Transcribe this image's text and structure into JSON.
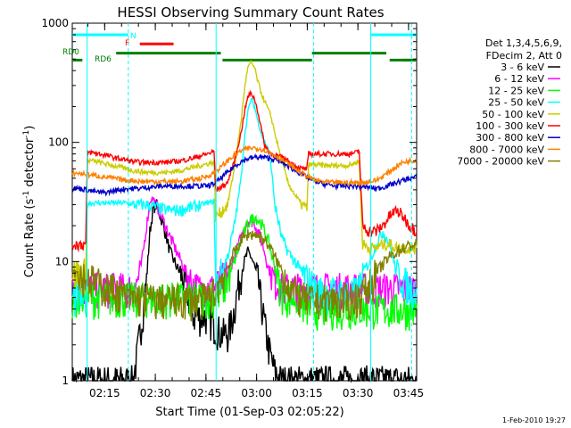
{
  "chart_data": {
    "type": "line",
    "title": "HESSI Observing Summary Count Rates",
    "xlabel": "Start Time (01-Sep-03 02:05:22)",
    "ylabel_pre": "Count Rate (s",
    "ylabel_sup1": "-1",
    "ylabel_mid": " detector",
    "ylabel_sup2": "-1",
    "ylabel_post": ")",
    "footer": "1-Feb-2010 19:27",
    "y_scale": "log",
    "ylim": [
      1,
      1000
    ],
    "y_ticks": [
      {
        "value": 1,
        "label": "1"
      },
      {
        "value": 10,
        "label": "10"
      },
      {
        "value": 100,
        "label": "100"
      },
      {
        "value": 1000,
        "label": "1000"
      }
    ],
    "xlim_minutes": [
      0,
      102
    ],
    "x_ticks": [
      {
        "value": 9.6,
        "label": "02:15"
      },
      {
        "value": 24.6,
        "label": "02:30"
      },
      {
        "value": 39.6,
        "label": "02:45"
      },
      {
        "value": 54.6,
        "label": "03:00"
      },
      {
        "value": 69.6,
        "label": "03:15"
      },
      {
        "value": 84.6,
        "label": "03:30"
      },
      {
        "value": 99.6,
        "label": "03:45"
      }
    ],
    "x_minor_step": 5,
    "x_minor_start": 4.6,
    "legend_header": [
      "Det 1,3,4,5,6,9,",
      "FDecim 2, Att 0"
    ],
    "series": [
      {
        "name": "3 - 6 keV",
        "color": "#000000",
        "x": [
          0,
          14,
          18,
          19,
          20,
          21,
          22,
          23,
          24,
          25,
          27,
          29,
          31,
          33,
          35,
          36,
          38,
          40,
          42,
          44,
          46,
          47,
          48,
          49,
          50,
          51,
          52,
          53,
          54,
          55,
          56,
          57,
          58,
          59,
          60,
          62,
          64,
          66,
          68,
          70,
          72,
          74,
          76,
          78,
          80,
          82,
          84,
          86,
          88,
          90,
          92,
          94,
          96,
          98,
          100,
          102
        ],
        "y": [
          1,
          1,
          1,
          1.5,
          2.5,
          4,
          7,
          18,
          28,
          30,
          20,
          12,
          9,
          7,
          4.5,
          3.5,
          3.5,
          3.5,
          3,
          2.5,
          2.5,
          3,
          4,
          6,
          8,
          10,
          12,
          11,
          9,
          7,
          4.5,
          3,
          2,
          1.5,
          1.2,
          1,
          1,
          1,
          1,
          1,
          1,
          1,
          1,
          1,
          1,
          1,
          1,
          1,
          1,
          1,
          1,
          1,
          1,
          1,
          1,
          1
        ]
      },
      {
        "name": "6 - 12 keV",
        "color": "#ff00ff",
        "x": [
          0,
          14,
          17,
          19,
          20,
          21,
          22,
          23,
          24,
          25,
          27,
          29,
          31,
          33,
          35,
          37,
          39,
          40,
          42,
          44,
          46,
          48,
          50,
          51,
          52,
          53,
          54,
          55,
          56,
          57,
          58,
          60,
          62,
          64,
          66,
          68,
          70,
          72,
          74,
          76,
          78,
          80,
          82,
          84,
          86,
          88,
          90,
          92,
          94,
          96,
          98,
          100,
          102
        ],
        "y": [
          6,
          6,
          6,
          6.5,
          8,
          12,
          20,
          32,
          34,
          30,
          22,
          16,
          12,
          9,
          7,
          6,
          6,
          6,
          6,
          7,
          8,
          11,
          16,
          19,
          22,
          22,
          21,
          18,
          15,
          12,
          9,
          7,
          6,
          6,
          6,
          6,
          6,
          6,
          6,
          6,
          6,
          6,
          6,
          6,
          6,
          6,
          6,
          6,
          6,
          6,
          6,
          6,
          6
        ]
      },
      {
        "name": "12 - 25 keV",
        "color": "#00ff00",
        "x": [
          0,
          4,
          6,
          8,
          10,
          12,
          14,
          16,
          18,
          20,
          22,
          24,
          26,
          28,
          30,
          32,
          34,
          36,
          38,
          40,
          42,
          44,
          46,
          48,
          50,
          52,
          54,
          56,
          58,
          60,
          62,
          64,
          66,
          68,
          70,
          72,
          74,
          76,
          78,
          80,
          82,
          84,
          86,
          88,
          90,
          92,
          94,
          96,
          98,
          100,
          102
        ],
        "y": [
          5,
          5,
          5,
          5,
          5,
          5,
          5,
          5,
          5,
          5,
          5,
          5,
          5,
          5,
          5,
          5,
          5,
          5,
          5,
          5,
          5,
          5.5,
          7,
          10,
          15,
          21,
          24,
          21,
          15,
          9,
          5.5,
          5,
          5,
          4.5,
          4,
          4,
          4,
          4,
          4,
          4,
          4,
          4,
          4,
          4,
          4,
          4,
          4,
          4,
          4,
          4,
          4
        ]
      },
      {
        "name": "25 - 50 keV",
        "color": "#00ffff",
        "x": [
          0,
          4,
          4.5,
          6,
          8,
          10,
          12,
          14,
          16,
          18,
          20,
          22,
          24,
          26,
          28,
          30,
          32,
          34,
          36,
          38,
          40,
          42,
          42.5,
          44,
          46,
          48,
          50,
          51,
          52,
          53,
          54,
          55,
          56,
          57,
          58,
          59,
          60,
          62,
          64,
          66,
          68,
          70,
          72,
          74,
          76,
          78,
          80,
          82,
          84,
          85,
          86,
          88,
          90,
          92,
          94,
          96,
          98,
          100,
          102
        ],
        "y": [
          5,
          5,
          31,
          31,
          31,
          31,
          31,
          31,
          31,
          30,
          30,
          30,
          29,
          28,
          27,
          27,
          27,
          28,
          29,
          30,
          31,
          32,
          6,
          8,
          11,
          20,
          50,
          110,
          180,
          230,
          200,
          150,
          120,
          100,
          90,
          60,
          30,
          16,
          12,
          10,
          8,
          7,
          6,
          5.5,
          5.5,
          5.5,
          5.5,
          5.5,
          5.5,
          6,
          8,
          10,
          14,
          18,
          14,
          8,
          7,
          6,
          6
        ]
      },
      {
        "name": "50 - 100 keV",
        "color": "#cccc00",
        "x": [
          0,
          4,
          4.5,
          6,
          8,
          10,
          12,
          14,
          16,
          18,
          20,
          22,
          24,
          26,
          28,
          30,
          32,
          34,
          36,
          38,
          40,
          42,
          42.5,
          44,
          46,
          48,
          50,
          51,
          52,
          53,
          54,
          55,
          56,
          57,
          58,
          59,
          60,
          62,
          64,
          66,
          68,
          69.5,
          70,
          72,
          74,
          76,
          78,
          80,
          82,
          84,
          85,
          86,
          88,
          90,
          92,
          94,
          96,
          98,
          100,
          102
        ],
        "y": [
          8,
          8,
          70,
          70,
          68,
          66,
          64,
          62,
          60,
          58,
          57,
          56,
          56,
          56,
          56,
          57,
          58,
          60,
          62,
          64,
          66,
          68,
          24,
          26,
          30,
          60,
          150,
          280,
          420,
          470,
          420,
          320,
          260,
          220,
          190,
          160,
          120,
          70,
          45,
          36,
          30,
          28,
          65,
          65,
          64,
          64,
          64,
          64,
          64,
          68,
          70,
          14,
          13,
          13,
          14,
          14,
          13,
          13,
          13,
          13
        ]
      },
      {
        "name": "100 - 300 keV",
        "color": "#ff0000",
        "x": [
          0,
          4,
          4.5,
          6,
          8,
          10,
          12,
          14,
          16,
          18,
          20,
          22,
          24,
          26,
          28,
          30,
          32,
          34,
          36,
          38,
          40,
          42,
          42.5,
          44,
          46,
          48,
          50,
          51,
          52,
          53,
          54,
          55,
          56,
          57,
          58,
          59,
          60,
          62,
          64,
          66,
          68,
          69.5,
          70,
          72,
          74,
          76,
          78,
          80,
          82,
          84,
          85,
          86,
          88,
          90,
          92,
          94,
          96,
          98,
          100,
          102
        ],
        "y": [
          14,
          14,
          82,
          82,
          80,
          78,
          75,
          73,
          71,
          69,
          68,
          68,
          68,
          68,
          68,
          69,
          70,
          72,
          74,
          77,
          80,
          84,
          40,
          42,
          46,
          70,
          120,
          180,
          240,
          260,
          230,
          180,
          130,
          95,
          85,
          80,
          78,
          75,
          70,
          64,
          60,
          60,
          80,
          80,
          80,
          80,
          80,
          80,
          80,
          82,
          85,
          20,
          18,
          18,
          20,
          24,
          27,
          24,
          20,
          18
        ]
      },
      {
        "name": "300 - 800 keV",
        "color": "#0000cc",
        "x": [
          0,
          2,
          4,
          6,
          8,
          10,
          12,
          14,
          16,
          18,
          20,
          22,
          24,
          26,
          28,
          30,
          32,
          34,
          36,
          38,
          40,
          42,
          44,
          46,
          48,
          50,
          52,
          54,
          56,
          58,
          60,
          62,
          64,
          66,
          68,
          70,
          72,
          74,
          76,
          78,
          80,
          82,
          84,
          86,
          88,
          90,
          92,
          94,
          96,
          98,
          100,
          102
        ],
        "y": [
          41,
          41,
          40,
          39,
          38,
          38,
          39,
          40,
          41,
          41,
          41,
          42,
          42,
          43,
          43,
          43,
          43,
          43,
          43,
          43,
          43,
          45,
          50,
          56,
          63,
          69,
          73,
          75,
          75,
          74,
          72,
          68,
          63,
          58,
          54,
          50,
          47,
          45,
          44,
          43,
          43,
          43,
          43,
          42,
          42,
          41,
          42,
          44,
          46,
          48,
          50,
          51
        ]
      },
      {
        "name": "800 - 7000 keV",
        "color": "#ff8000",
        "x": [
          0,
          2,
          4,
          6,
          8,
          10,
          12,
          14,
          16,
          18,
          20,
          22,
          24,
          26,
          28,
          30,
          32,
          34,
          36,
          38,
          40,
          42,
          44,
          46,
          48,
          50,
          52,
          54,
          56,
          58,
          60,
          62,
          64,
          66,
          68,
          70,
          72,
          74,
          76,
          78,
          80,
          82,
          84,
          86,
          88,
          90,
          92,
          94,
          96,
          98,
          100,
          102
        ],
        "y": [
          55,
          55,
          54,
          53,
          52,
          51,
          50,
          49,
          48,
          48,
          47,
          47,
          47,
          47,
          47,
          47,
          47,
          48,
          49,
          50,
          52,
          56,
          62,
          70,
          78,
          85,
          89,
          90,
          88,
          84,
          78,
          72,
          66,
          60,
          55,
          51,
          48,
          47,
          46,
          46,
          46,
          46,
          46,
          46,
          47,
          48,
          52,
          57,
          63,
          68,
          70,
          71
        ]
      },
      {
        "name": "7000 - 20000 keV",
        "color": "#808000",
        "x": [
          0,
          2,
          4,
          6,
          8,
          10,
          12,
          14,
          16,
          18,
          20,
          22,
          24,
          26,
          28,
          30,
          32,
          34,
          36,
          38,
          40,
          42,
          44,
          46,
          48,
          50,
          52,
          54,
          56,
          58,
          60,
          62,
          64,
          66,
          68,
          70,
          72,
          74,
          76,
          78,
          80,
          82,
          84,
          86,
          88,
          90,
          92,
          94,
          96,
          98,
          100,
          102
        ],
        "y": [
          8.5,
          8,
          7.5,
          7,
          6.5,
          6,
          6,
          5.5,
          5,
          5,
          5,
          5,
          4.8,
          4.8,
          4.8,
          4.8,
          4.8,
          4.8,
          4.8,
          4.8,
          5,
          5.5,
          7,
          9,
          12,
          15,
          17,
          17,
          16,
          14,
          11,
          8.5,
          6.5,
          5.5,
          5,
          4.8,
          4.8,
          4.8,
          4.8,
          4.8,
          4.8,
          4.8,
          5,
          5.5,
          6.5,
          8,
          9.5,
          11,
          12,
          13,
          13.5,
          14
        ]
      }
    ],
    "flags": [
      {
        "name": "N",
        "color": "#00ffff",
        "level": 800,
        "segments": [
          [
            0,
            16.6
          ],
          [
            88.4,
            102
          ]
        ]
      },
      {
        "name": "F",
        "color": "#ff0000",
        "level": 670,
        "segments": [
          [
            20,
            30
          ]
        ]
      },
      {
        "name": "RD0",
        "color": "#008000",
        "level": 560,
        "segments": [
          [
            13,
            44
          ]
        ]
      },
      {
        "name": "RD6",
        "color": "#008000",
        "level": 490,
        "segments": [
          [
            0,
            3
          ],
          [
            44.5,
            71
          ],
          [
            98,
            102
          ]
        ]
      },
      {
        "name": "RD0b",
        "color": "#008000",
        "level": 560,
        "segments": [
          [
            71,
            93
          ]
        ]
      },
      {
        "name": "RD6b",
        "color": "#008000",
        "level": 490,
        "segments": [
          [
            94,
            102
          ]
        ]
      }
    ],
    "flag_labels": {
      "n": "N",
      "f": "F",
      "rd0": "RD0",
      "rd6": "RD6"
    },
    "vlines": [
      {
        "x": 4.4,
        "color": "#00ffff",
        "style": "solid"
      },
      {
        "x": 16.6,
        "color": "#00ffff",
        "style": "dashed"
      },
      {
        "x": 42.6,
        "color": "#00ffff",
        "style": "solid"
      },
      {
        "x": 71.5,
        "color": "#00ffff",
        "style": "dashed"
      },
      {
        "x": 88.4,
        "color": "#00ffff",
        "style": "solid"
      },
      {
        "x": 100.5,
        "color": "#00ffff",
        "style": "dashed"
      }
    ],
    "grid": false,
    "legend_position": "right"
  }
}
